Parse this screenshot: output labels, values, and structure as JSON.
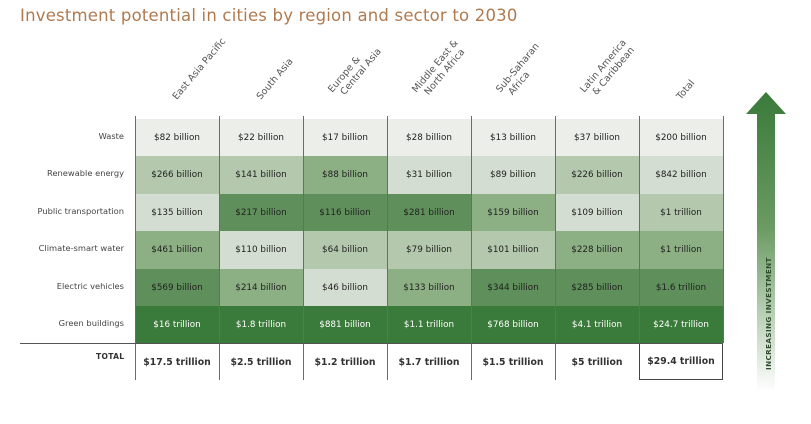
{
  "chart_data": {
    "type": "heatmap",
    "title": "Investment potential in cities by region and sector to 2030",
    "columns": [
      "East Asia Pacific",
      "South Asia",
      "Europe & Central Asia",
      "Middle East & North Africa",
      "Sub-Saharan Africa",
      "Latin America & Caribbean",
      "Total"
    ],
    "column_lines": [
      [
        "East Asia Pacific"
      ],
      [
        "South Asia"
      ],
      [
        "Europe &",
        "Central Asia"
      ],
      [
        "Middle East &",
        "North Africa"
      ],
      [
        "Sub-Saharan",
        "Africa"
      ],
      [
        "Latin America",
        "& Caribbean"
      ],
      [
        "Total"
      ]
    ],
    "rows": [
      {
        "sector": "Waste",
        "values": [
          "$82 billion",
          "$22 billion",
          "$17 billion",
          "$28 billion",
          "$13 billion",
          "$37 billion",
          "$200 billion"
        ],
        "shade_levels": [
          0,
          0,
          0,
          0,
          0,
          0,
          0
        ]
      },
      {
        "sector": "Renewable energy",
        "values": [
          "$266 billion",
          "$141 billion",
          "$88 billion",
          "$31 billion",
          "$89 billion",
          "$226 billion",
          "$842 billion"
        ],
        "shade_levels": [
          2,
          2,
          3,
          1,
          1,
          2,
          1
        ]
      },
      {
        "sector": "Public transportation",
        "values": [
          "$135 billion",
          "$217 billion",
          "$116 billion",
          "$281 billion",
          "$159 billion",
          "$109 billion",
          "$1 trillion"
        ],
        "shade_levels": [
          1,
          4,
          4,
          4,
          3,
          1,
          2
        ]
      },
      {
        "sector": "Climate-smart water",
        "values": [
          "$461 billion",
          "$110 billion",
          "$64 billion",
          "$79 billion",
          "$101 billion",
          "$228 billion",
          "$1 trillion"
        ],
        "shade_levels": [
          3,
          1,
          2,
          2,
          2,
          3,
          3
        ]
      },
      {
        "sector": "Electric vehicles",
        "values": [
          "$569 billion",
          "$214 billion",
          "$46 billion",
          "$133 billion",
          "$344 billion",
          "$285 billion",
          "$1.6 trillion"
        ],
        "shade_levels": [
          4,
          3,
          1,
          3,
          4,
          4,
          4
        ]
      },
      {
        "sector": "Green buildings",
        "values": [
          "$16 trillion",
          "$1.8 trillion",
          "$881 billion",
          "$1.1 trillion",
          "$768 billion",
          "$4.1 trillion",
          "$24.7 trillion"
        ],
        "shade_levels": [
          5,
          5,
          5,
          5,
          5,
          5,
          5
        ]
      }
    ],
    "totals": {
      "label": "TOTAL",
      "values": [
        "$17.5 trillion",
        "$2.5 trillion",
        "$1.2 trillion",
        "$1.7 trillion",
        "$1.5 trillion",
        "$5 trillion",
        "$29.4 trillion"
      ]
    },
    "legend": {
      "label": "INCREASING INVESTMENT",
      "direction": "up",
      "placement": "right"
    },
    "colors": {
      "title": "#b07a4f",
      "shades": [
        "#eceeea",
        "#d4ddd1",
        "#b3c8ad",
        "#8caf84",
        "#5f8f5a",
        "#3a7a3a"
      ],
      "arrow_top": "#3a7a3a",
      "arrow_bottom": "#ffffff"
    }
  }
}
